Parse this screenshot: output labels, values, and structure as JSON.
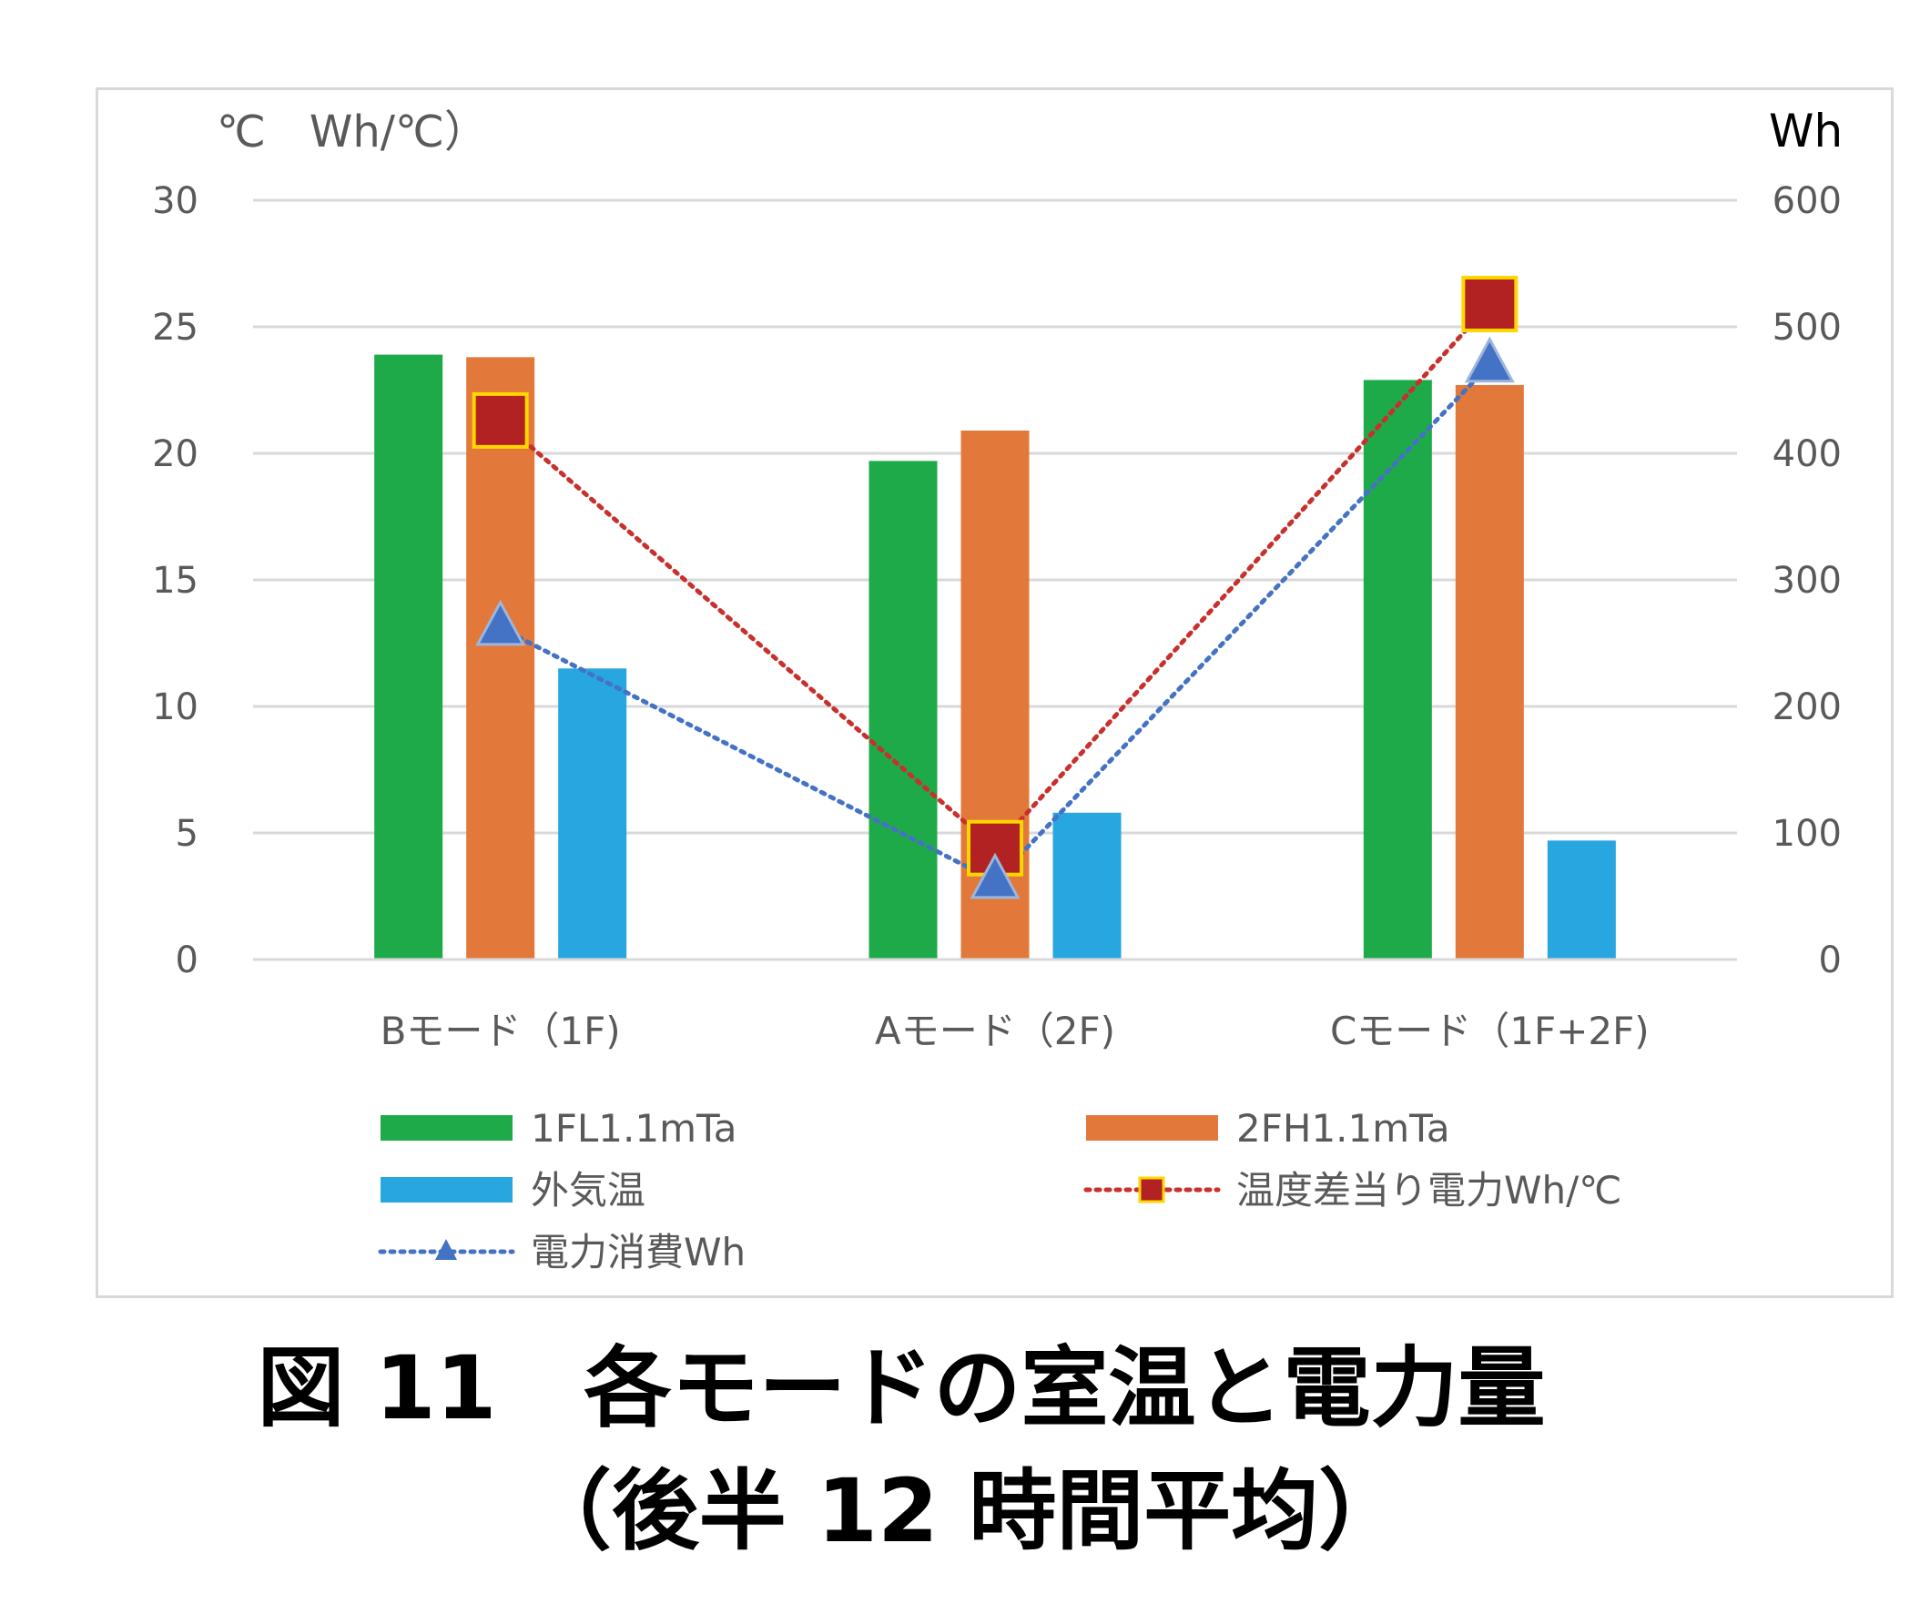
{
  "chart_data": {
    "type": "bar",
    "categories": [
      "Bモード（1F)",
      "Aモード（2F)",
      "Cモード（1F+2F)"
    ],
    "series": [
      {
        "name": "1FL1.1mTa",
        "kind": "bar",
        "axis": "left",
        "color": "#1faa4a",
        "values": [
          23.9,
          19.7,
          22.9
        ]
      },
      {
        "name": "2FH1.1mTa",
        "kind": "bar",
        "axis": "left",
        "color": "#e2793a",
        "values": [
          23.8,
          20.9,
          22.7
        ]
      },
      {
        "name": "外気温",
        "kind": "bar",
        "axis": "left",
        "color": "#27a6df",
        "values": [
          11.5,
          5.8,
          4.7
        ]
      },
      {
        "name": "温度差当り電力Wh/℃",
        "kind": "line",
        "axis": "left",
        "color": "#b22222",
        "line_color": "#c8302c",
        "marker": "square",
        "marker_border": "#ffd700",
        "values": [
          21.3,
          4.4,
          25.9
        ]
      },
      {
        "name": "電力消費Wh",
        "kind": "line",
        "axis": "right",
        "color": "#4472c4",
        "marker": "triangle",
        "values": [
          262,
          62,
          470
        ]
      }
    ],
    "left_axis": {
      "unit_label": "℃　Wh/℃）",
      "ylim": [
        0,
        30
      ],
      "ticks": [
        "0",
        "5",
        "10",
        "15",
        "20",
        "25",
        "30"
      ]
    },
    "right_axis": {
      "unit_label": "Wh",
      "ylim": [
        0,
        600
      ],
      "ticks": [
        "0",
        "100",
        "200",
        "300",
        "400",
        "500",
        "600"
      ]
    },
    "grid": true,
    "legend_position": "bottom"
  },
  "caption": {
    "line1": "図 11　各モードの室温と電力量",
    "line2": "（後半 12 時間平均）"
  }
}
